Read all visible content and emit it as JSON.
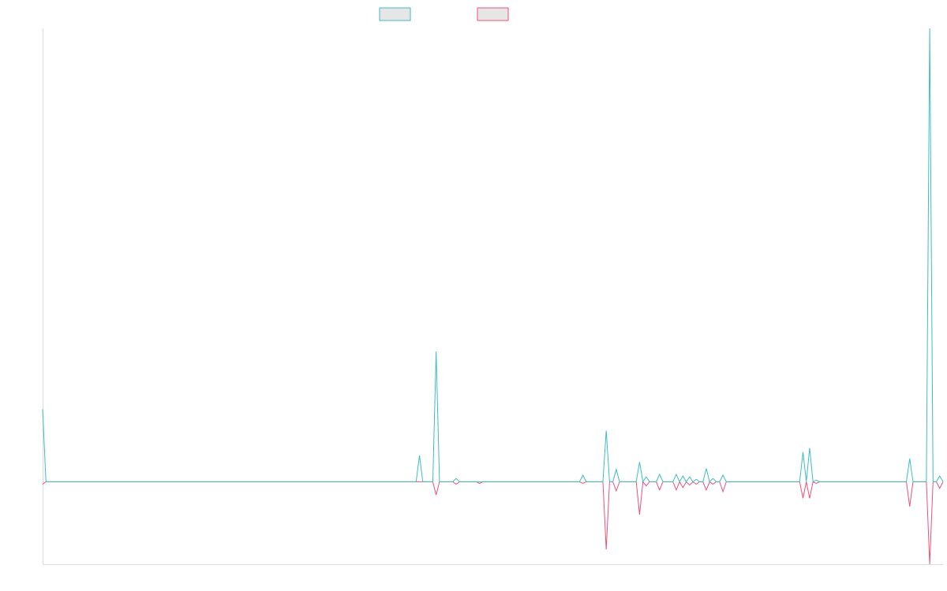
{
  "chart_data": {
    "type": "line",
    "title": "",
    "xlabel": "",
    "ylabel": "",
    "x_count": 271,
    "ylim": [
      -100,
      550
    ],
    "grid": false,
    "legend_position": "top-center",
    "colors": {
      "series_a": "#3bbfbf",
      "series_b": "#f0507a",
      "legend_fill": "#e6e6e6",
      "axis": "#dddddd"
    },
    "series": [
      {
        "name": "",
        "color": "#3bbfbf",
        "points": [
          [
            0,
            88
          ],
          [
            1,
            0
          ],
          [
            112,
            0
          ],
          [
            113,
            32
          ],
          [
            114,
            0
          ],
          [
            117,
            0
          ],
          [
            118,
            158
          ],
          [
            119,
            0
          ],
          [
            123,
            0
          ],
          [
            124,
            4
          ],
          [
            125,
            0
          ],
          [
            161,
            0
          ],
          [
            162,
            8
          ],
          [
            163,
            0
          ],
          [
            168,
            0
          ],
          [
            169,
            62
          ],
          [
            170,
            0
          ],
          [
            171,
            0
          ],
          [
            172,
            15
          ],
          [
            173,
            0
          ],
          [
            178,
            0
          ],
          [
            179,
            24
          ],
          [
            180,
            0
          ],
          [
            181,
            6
          ],
          [
            182,
            0
          ],
          [
            184,
            0
          ],
          [
            185,
            9
          ],
          [
            186,
            0
          ],
          [
            189,
            0
          ],
          [
            190,
            9
          ],
          [
            191,
            0
          ],
          [
            192,
            7
          ],
          [
            193,
            0
          ],
          [
            194,
            6
          ],
          [
            195,
            0
          ],
          [
            196,
            3
          ],
          [
            197,
            0
          ],
          [
            198,
            0
          ],
          [
            199,
            16
          ],
          [
            200,
            0
          ],
          [
            201,
            4
          ],
          [
            202,
            0
          ],
          [
            203,
            0
          ],
          [
            204,
            8
          ],
          [
            205,
            0
          ],
          [
            227,
            0
          ],
          [
            228,
            36
          ],
          [
            229,
            0
          ],
          [
            230,
            41
          ],
          [
            231,
            0
          ],
          [
            232,
            2
          ],
          [
            233,
            0
          ],
          [
            259,
            0
          ],
          [
            260,
            28
          ],
          [
            261,
            0
          ],
          [
            265,
            0
          ],
          [
            266,
            550
          ],
          [
            267,
            0
          ],
          [
            268,
            0
          ],
          [
            269,
            7
          ],
          [
            270,
            0
          ]
        ]
      },
      {
        "name": "",
        "color": "#f0507a",
        "points": [
          [
            0,
            -3
          ],
          [
            1,
            0
          ],
          [
            117,
            0
          ],
          [
            118,
            -16
          ],
          [
            119,
            0
          ],
          [
            123,
            0
          ],
          [
            124,
            -3
          ],
          [
            125,
            0
          ],
          [
            126,
            0
          ],
          [
            130,
            0
          ],
          [
            131,
            -2
          ],
          [
            132,
            0
          ],
          [
            161,
            0
          ],
          [
            162,
            -2
          ],
          [
            163,
            0
          ],
          [
            168,
            0
          ],
          [
            169,
            -82
          ],
          [
            170,
            0
          ],
          [
            171,
            0
          ],
          [
            172,
            -11
          ],
          [
            173,
            0
          ],
          [
            178,
            0
          ],
          [
            179,
            -40
          ],
          [
            180,
            0
          ],
          [
            181,
            -5
          ],
          [
            182,
            0
          ],
          [
            184,
            0
          ],
          [
            185,
            -10
          ],
          [
            186,
            0
          ],
          [
            189,
            0
          ],
          [
            190,
            -10
          ],
          [
            191,
            0
          ],
          [
            192,
            -7
          ],
          [
            193,
            0
          ],
          [
            194,
            -4
          ],
          [
            195,
            0
          ],
          [
            196,
            -3
          ],
          [
            197,
            0
          ],
          [
            198,
            0
          ],
          [
            199,
            -10
          ],
          [
            200,
            0
          ],
          [
            201,
            -3
          ],
          [
            202,
            0
          ],
          [
            203,
            0
          ],
          [
            204,
            -12
          ],
          [
            205,
            0
          ],
          [
            227,
            0
          ],
          [
            228,
            -20
          ],
          [
            229,
            0
          ],
          [
            230,
            -20
          ],
          [
            231,
            0
          ],
          [
            232,
            -2
          ],
          [
            233,
            0
          ],
          [
            259,
            0
          ],
          [
            260,
            -30
          ],
          [
            261,
            0
          ],
          [
            265,
            0
          ],
          [
            266,
            -100
          ],
          [
            267,
            0
          ],
          [
            268,
            0
          ],
          [
            269,
            -8
          ],
          [
            270,
            0
          ]
        ]
      }
    ]
  }
}
